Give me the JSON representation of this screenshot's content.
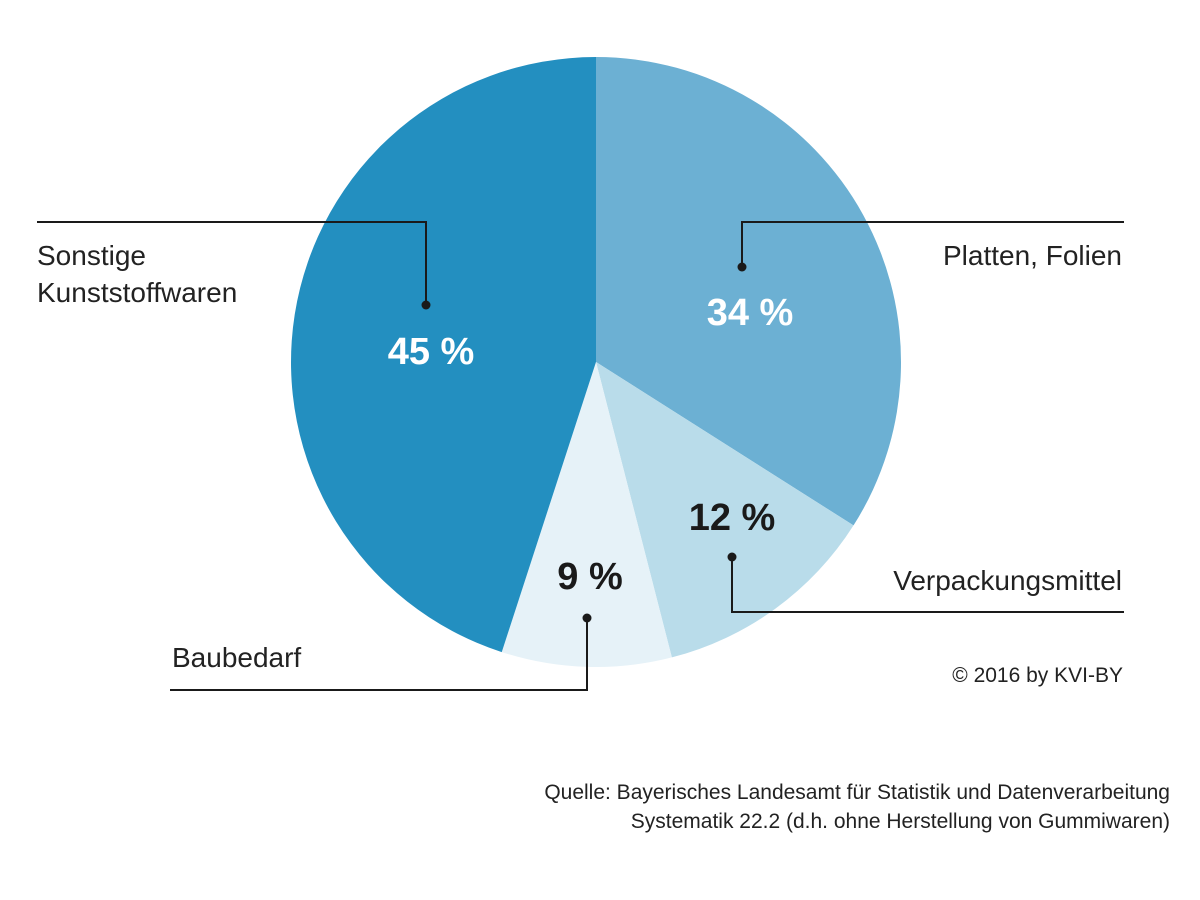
{
  "chart_data": {
    "type": "pie",
    "slices": [
      {
        "label": "Platten, Folien",
        "label_lines": [
          "Platten, Folien"
        ],
        "value": 34,
        "value_label": "34 %",
        "color": "#6cb0d3",
        "value_color": "#ffffff"
      },
      {
        "label": "Verpackungsmittel",
        "label_lines": [
          "Verpackungsmittel"
        ],
        "value": 12,
        "value_label": "12 %",
        "color": "#b9dcea",
        "value_color": "#1a1a1a"
      },
      {
        "label": "Baubedarf",
        "label_lines": [
          "Baubedarf"
        ],
        "value": 9,
        "value_label": "9 %",
        "color": "#e6f2f8",
        "value_color": "#1a1a1a"
      },
      {
        "label": "Sonstige Kunststoffwaren",
        "label_lines": [
          "Sonstige",
          "Kunststoffwaren"
        ],
        "value": 45,
        "value_label": "45 %",
        "color": "#238fc0",
        "value_color": "#ffffff"
      }
    ],
    "start_angle_deg": 0,
    "direction": "clockwise"
  },
  "footer": {
    "copyright": "© 2016 by KVI-BY",
    "source_line1": "Quelle:  Bayerisches Landesamt für Statistik und Datenverarbeitung",
    "source_line2": "Systematik 22.2 (d.h. ohne Herstellung von Gummiwaren)"
  }
}
